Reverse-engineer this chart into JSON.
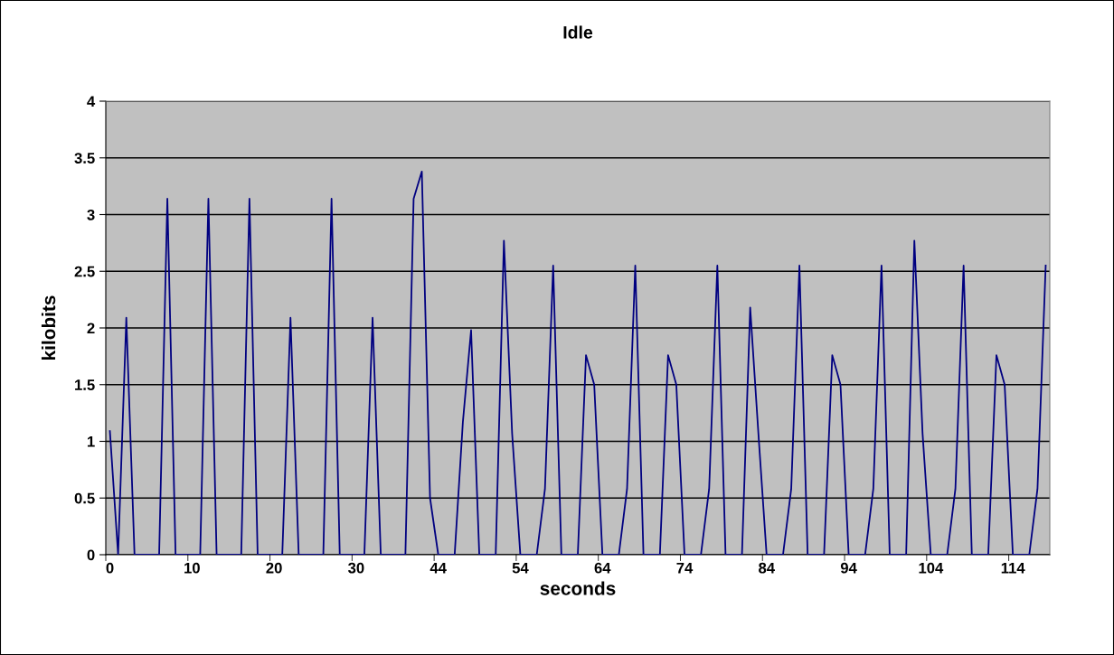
{
  "chart_data": {
    "type": "line",
    "title": "Idle",
    "xlabel": "seconds",
    "ylabel": "kilobits",
    "categories": [
      "0",
      null,
      null,
      null,
      null,
      null,
      null,
      null,
      null,
      null,
      "10",
      null,
      null,
      null,
      null,
      null,
      null,
      null,
      null,
      null,
      "20",
      null,
      null,
      null,
      null,
      null,
      null,
      null,
      null,
      null,
      "30",
      null,
      null,
      null,
      null,
      null,
      null,
      null,
      null,
      null,
      "44",
      null,
      null,
      null,
      null,
      null,
      null,
      null,
      null,
      null,
      "54",
      null,
      null,
      null,
      null,
      null,
      null,
      null,
      null,
      null,
      "64",
      null,
      null,
      null,
      null,
      null,
      null,
      null,
      null,
      null,
      "74",
      null,
      null,
      null,
      null,
      null,
      null,
      null,
      null,
      null,
      "84",
      null,
      null,
      null,
      null,
      null,
      null,
      null,
      null,
      null,
      "94",
      null,
      null,
      null,
      null,
      null,
      null,
      null,
      null,
      null,
      "104",
      null,
      null,
      null,
      null,
      null,
      null,
      null,
      null,
      null,
      "114",
      null,
      null,
      null,
      null
    ],
    "series": [
      {
        "color": "#000080",
        "values": [
          1.09,
          0,
          2.09,
          0,
          0,
          0,
          0,
          3.14,
          0,
          0,
          0,
          0,
          3.14,
          0,
          0,
          0,
          0,
          3.14,
          0,
          0,
          0,
          0,
          2.09,
          0,
          0,
          0,
          0,
          3.14,
          0,
          0,
          0,
          0,
          2.09,
          0,
          0,
          0,
          0,
          3.14,
          3.38,
          0.5,
          0,
          0,
          0,
          1.17,
          1.98,
          0,
          0,
          0,
          2.77,
          1.07,
          0,
          0,
          0,
          0.58,
          2.55,
          0,
          0,
          0,
          1.76,
          1.5,
          0,
          0,
          0,
          0.58,
          2.55,
          0,
          0,
          0,
          1.76,
          1.5,
          0,
          0,
          0,
          0.58,
          2.55,
          0,
          0,
          0,
          2.18,
          1.07,
          0,
          0,
          0,
          0.58,
          2.55,
          0,
          0,
          0,
          1.76,
          1.5,
          0,
          0,
          0,
          0.58,
          2.55,
          0,
          0,
          0,
          2.77,
          1.07,
          0,
          0,
          0,
          0.58,
          2.55,
          0,
          0,
          0,
          1.76,
          1.5,
          0,
          0,
          0,
          0.58,
          2.55
        ]
      }
    ],
    "ylim": [
      0,
      4
    ],
    "yticks": [
      0,
      0.5,
      1,
      1.5,
      2,
      2.5,
      3,
      3.5,
      4
    ],
    "grid": "y",
    "legend": false,
    "marker": "none",
    "line_style": "solid"
  }
}
